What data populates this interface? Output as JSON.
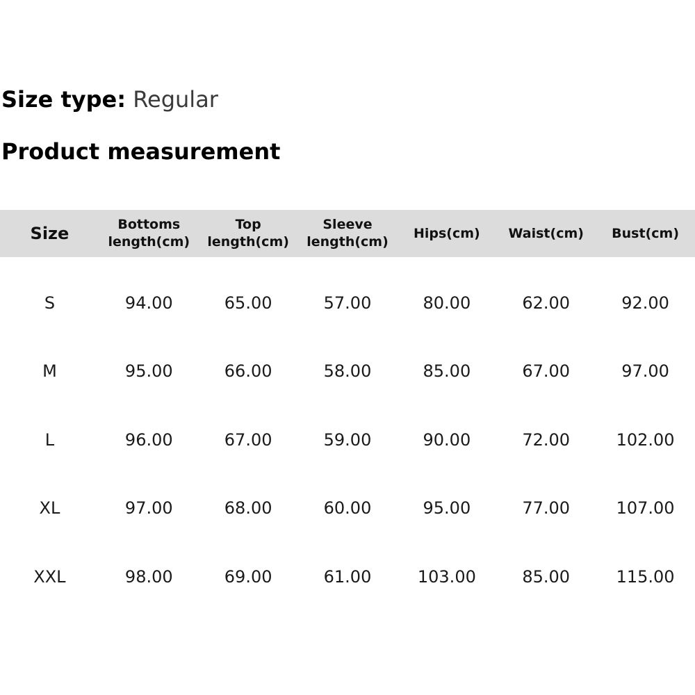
{
  "size_type": {
    "label": "Size type:",
    "value": "Regular"
  },
  "section_title": "Product measurement",
  "table": {
    "headers": [
      "Size",
      "Bottoms\nlength(cm)",
      "Top\nlength(cm)",
      "Sleeve\nlength(cm)",
      "Hips(cm)",
      "Waist(cm)",
      "Bust(cm)"
    ],
    "rows": [
      [
        "S",
        "94.00",
        "65.00",
        "57.00",
        "80.00",
        "62.00",
        "92.00"
      ],
      [
        "M",
        "95.00",
        "66.00",
        "58.00",
        "85.00",
        "67.00",
        "97.00"
      ],
      [
        "L",
        "96.00",
        "67.00",
        "59.00",
        "90.00",
        "72.00",
        "102.00"
      ],
      [
        "XL",
        "97.00",
        "68.00",
        "60.00",
        "95.00",
        "77.00",
        "107.00"
      ],
      [
        "XXL",
        "98.00",
        "69.00",
        "61.00",
        "103.00",
        "85.00",
        "115.00"
      ]
    ]
  },
  "colors": {
    "header_bg": "#dcdcdc"
  }
}
